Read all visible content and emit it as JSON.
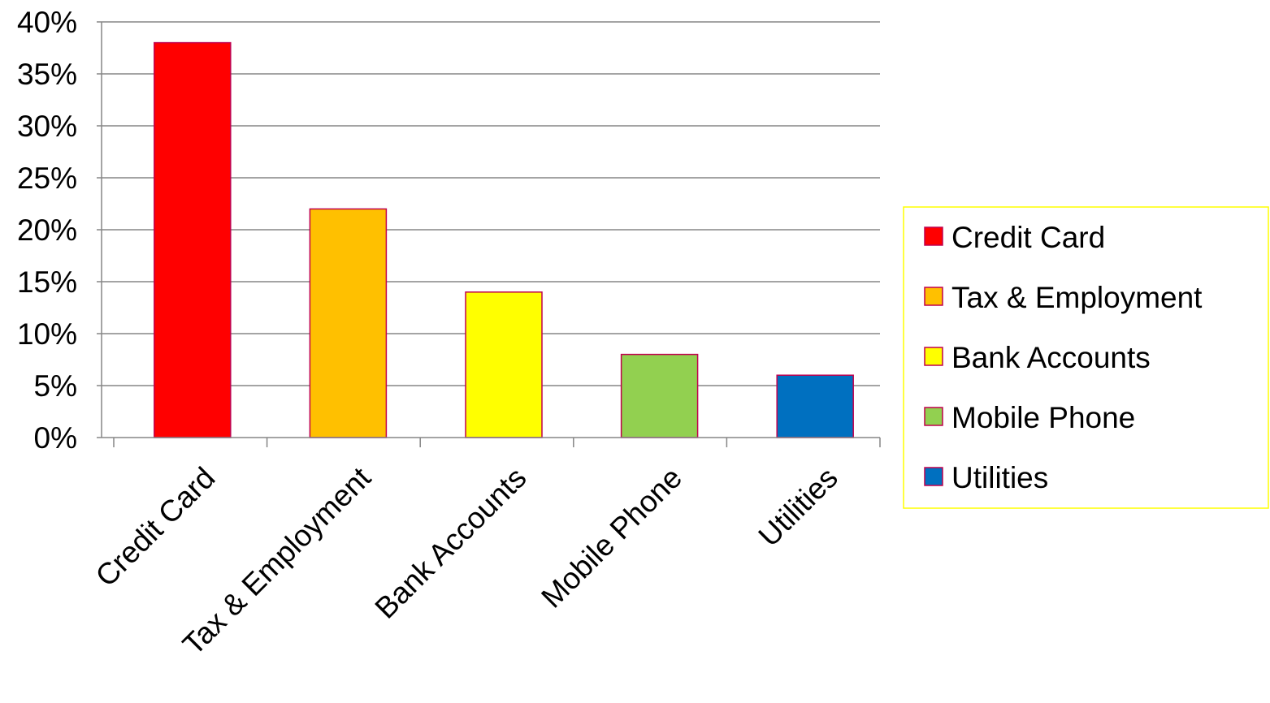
{
  "chart_data": {
    "type": "bar",
    "title": "",
    "xlabel": "",
    "ylabel": "",
    "categories": [
      "Credit Card",
      "Tax & Employment",
      "Bank Accounts",
      "Mobile Phone",
      "Utilities"
    ],
    "values": [
      0.38,
      0.22,
      0.14,
      0.08,
      0.06
    ],
    "colors": [
      "#FF0000",
      "#FFC000",
      "#FFFF00",
      "#92D050",
      "#0070C0"
    ],
    "bar_border_color": "#C0004E",
    "ylim": [
      0,
      0.4
    ],
    "yticks": [
      0,
      0.05,
      0.1,
      0.15,
      0.2,
      0.25,
      0.3,
      0.35,
      0.4
    ],
    "ytick_labels": [
      "0%",
      "5%",
      "10%",
      "15%",
      "20%",
      "25%",
      "30%",
      "35%",
      "40%"
    ],
    "grid": true,
    "gridline_color": "#868686",
    "legend": {
      "position": "right",
      "border_color": "#FFFF00",
      "entries": [
        "Credit Card",
        "Tax & Employment",
        "Bank Accounts",
        "Mobile Phone",
        "Utilities"
      ]
    }
  }
}
